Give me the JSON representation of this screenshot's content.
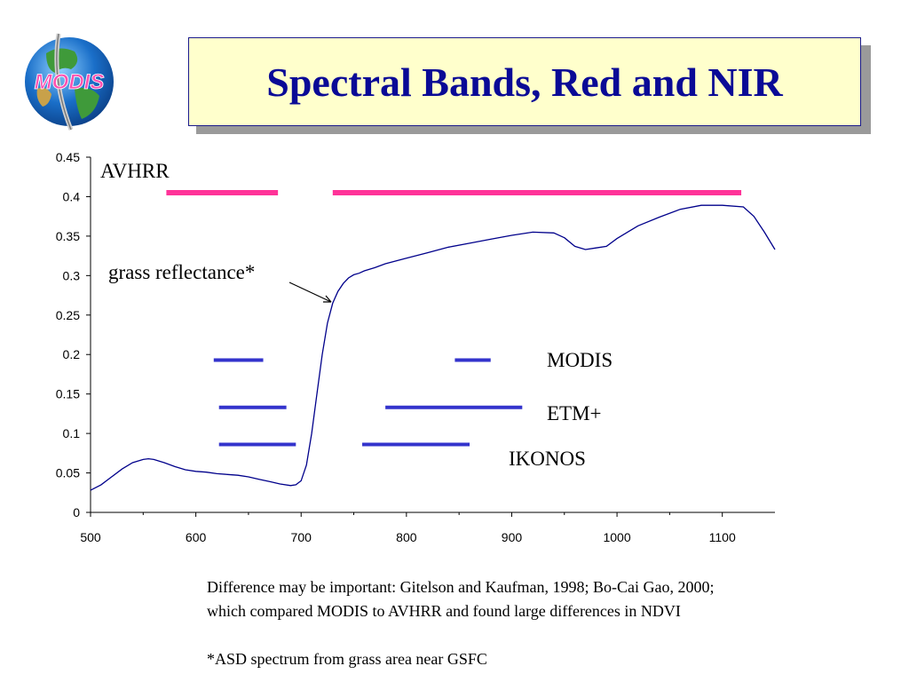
{
  "slide": {
    "title": "Spectral Bands, Red and NIR",
    "logo_text": "MODIS",
    "footnote_line1": "Difference may be important: Gitelson and Kaufman, 1998; Bo-Cai Gao, 2000;",
    "footnote_line2": "which compared MODIS to AVHRR and found large differences in NDVI",
    "footnote_line3": "*ASD spectrum from grass area near GSFC"
  },
  "colors": {
    "title_text": "#0a0a96",
    "title_bg": "#ffffcc",
    "avhrr": "#ff3399",
    "sensor_bands": "#3333cc",
    "spectrum": "#00008b"
  },
  "chart_data": {
    "type": "line",
    "title": "",
    "xlabel": "",
    "ylabel": "",
    "xlim": [
      500,
      1150
    ],
    "ylim": [
      0,
      0.45
    ],
    "xticks": [
      "500",
      "600",
      "700",
      "800",
      "900",
      "1000",
      "1100"
    ],
    "yticks": [
      "0",
      "0.05",
      "0.1",
      "0.15",
      "0.2",
      "0.25",
      "0.3",
      "0.35",
      "0.4",
      "0.45"
    ],
    "grid": false,
    "series": [
      {
        "x": [
          500,
          510,
          520,
          530,
          540,
          550,
          555,
          560,
          570,
          580,
          590,
          600,
          610,
          620,
          630,
          640,
          650,
          660,
          670,
          680,
          690,
          695,
          700,
          705,
          710,
          715,
          720,
          725,
          730,
          735,
          740,
          745,
          750,
          755,
          760,
          770,
          780,
          800,
          820,
          840,
          860,
          880,
          900,
          920,
          940,
          950,
          960,
          970,
          980,
          990,
          1000,
          1010,
          1020,
          1040,
          1060,
          1080,
          1100,
          1120,
          1130,
          1140,
          1150
        ],
        "y": [
          0.028,
          0.035,
          0.045,
          0.055,
          0.063,
          0.067,
          0.068,
          0.067,
          0.063,
          0.058,
          0.054,
          0.052,
          0.051,
          0.049,
          0.048,
          0.047,
          0.045,
          0.042,
          0.039,
          0.036,
          0.034,
          0.035,
          0.04,
          0.06,
          0.1,
          0.15,
          0.2,
          0.24,
          0.265,
          0.28,
          0.29,
          0.297,
          0.301,
          0.303,
          0.306,
          0.31,
          0.315,
          0.322,
          0.329,
          0.336,
          0.341,
          0.346,
          0.351,
          0.355,
          0.354,
          0.348,
          0.337,
          0.333,
          0.335,
          0.337,
          0.347,
          0.355,
          0.363,
          0.374,
          0.384,
          0.389,
          0.389,
          0.387,
          0.375,
          0.355,
          0.333
        ]
      }
    ],
    "bands": [
      {
        "sensor": "AVHRR",
        "x0": 572,
        "x1": 678,
        "y": 0.405
      },
      {
        "sensor": "AVHRR",
        "x0": 730,
        "x1": 1118,
        "y": 0.405
      },
      {
        "sensor": "MODIS",
        "x0": 617,
        "x1": 664,
        "y": 0.193
      },
      {
        "sensor": "MODIS",
        "x0": 846,
        "x1": 880,
        "y": 0.193
      },
      {
        "sensor": "ETM+",
        "x0": 622,
        "x1": 686,
        "y": 0.133
      },
      {
        "sensor": "ETM+",
        "x0": 780,
        "x1": 910,
        "y": 0.133
      },
      {
        "sensor": "IKONOS",
        "x0": 622,
        "x1": 695,
        "y": 0.086
      },
      {
        "sensor": "IKONOS",
        "x0": 758,
        "x1": 860,
        "y": 0.086
      }
    ],
    "annotations": {
      "avhrr": "AVHRR",
      "modis": "MODIS",
      "etm": "ETM+",
      "ikonos": "IKONOS",
      "grass": "grass reflectance*"
    }
  }
}
